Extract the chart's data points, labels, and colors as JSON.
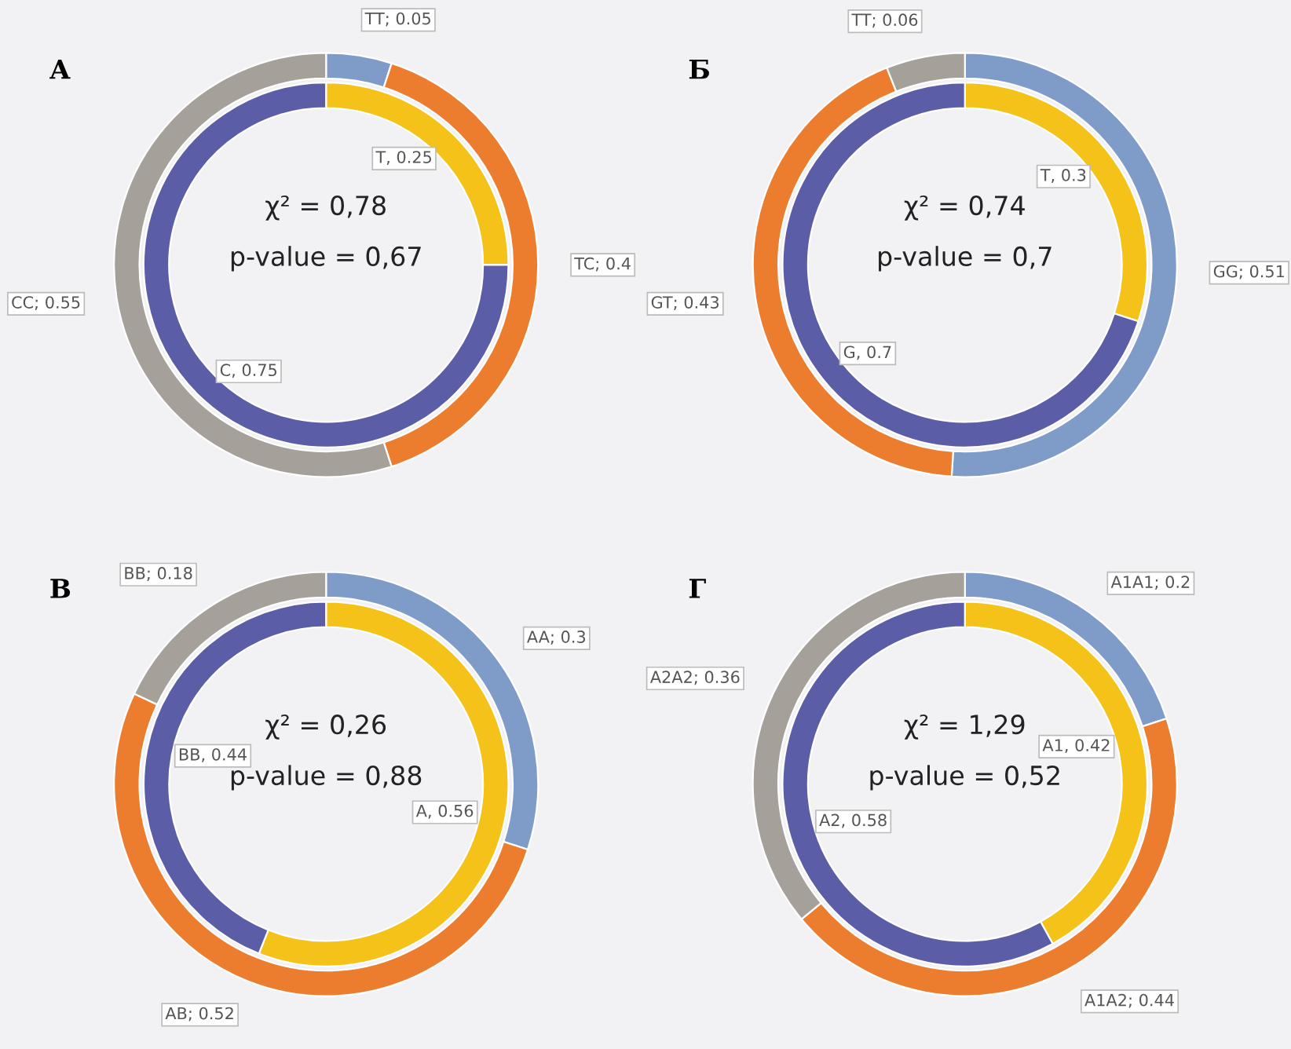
{
  "chart_data": [
    {
      "type": "donut",
      "title": "А",
      "annotations": [
        "χ² = 0,78",
        "p-value = 0,67"
      ],
      "series": [
        {
          "values": [
            0.05,
            0.4,
            0.55
          ],
          "colors": [
            "#7f9cc8",
            "#ec7d2f",
            "#a5a09a"
          ],
          "value_labels": [
            "TT; 0.05",
            "TC; 0.4",
            "CC; 0.55"
          ]
        },
        {
          "values": [
            0.25,
            0.75
          ],
          "colors": [
            "#f5c21a",
            "#5b5ea6"
          ],
          "value_labels": [
            "T, 0.25",
            "C, 0.75"
          ]
        }
      ]
    },
    {
      "type": "donut",
      "title": "Б",
      "annotations": [
        "χ² = 0,74",
        "p-value = 0,7"
      ],
      "series": [
        {
          "values": [
            0.51,
            0.43,
            0.06
          ],
          "colors": [
            "#7f9cc8",
            "#ec7d2f",
            "#a5a09a"
          ],
          "value_labels": [
            "GG; 0.51",
            "GT; 0.43",
            "TT; 0.06"
          ]
        },
        {
          "values": [
            0.3,
            0.7
          ],
          "colors": [
            "#f5c21a",
            "#5b5ea6"
          ],
          "value_labels": [
            "T, 0.3",
            "G, 0.7"
          ]
        }
      ]
    },
    {
      "type": "donut",
      "title": "В",
      "annotations": [
        "χ² = 0,26",
        "p-value = 0,88"
      ],
      "series": [
        {
          "values": [
            0.3,
            0.52,
            0.18
          ],
          "colors": [
            "#7f9cc8",
            "#ec7d2f",
            "#a5a09a"
          ],
          "value_labels": [
            "AA; 0.3",
            "AB; 0.52",
            "BB; 0.18"
          ]
        },
        {
          "values": [
            0.56,
            0.44
          ],
          "colors": [
            "#f5c21a",
            "#5b5ea6"
          ],
          "value_labels": [
            "A, 0.56",
            "BB, 0.44"
          ]
        }
      ]
    },
    {
      "type": "donut",
      "title": "Г",
      "annotations": [
        "χ² = 1,29",
        "p-value = 0,52"
      ],
      "series": [
        {
          "values": [
            0.2,
            0.44,
            0.36
          ],
          "colors": [
            "#7f9cc8",
            "#ec7d2f",
            "#a5a09a"
          ],
          "value_labels": [
            "A1A1; 0.2",
            "A1A2; 0.44",
            "A2A2; 0.36"
          ]
        },
        {
          "values": [
            0.42,
            0.58
          ],
          "colors": [
            "#f5c21a",
            "#5b5ea6"
          ],
          "value_labels": [
            "A1, 0.42",
            "A2, 0.58"
          ]
        }
      ]
    }
  ]
}
